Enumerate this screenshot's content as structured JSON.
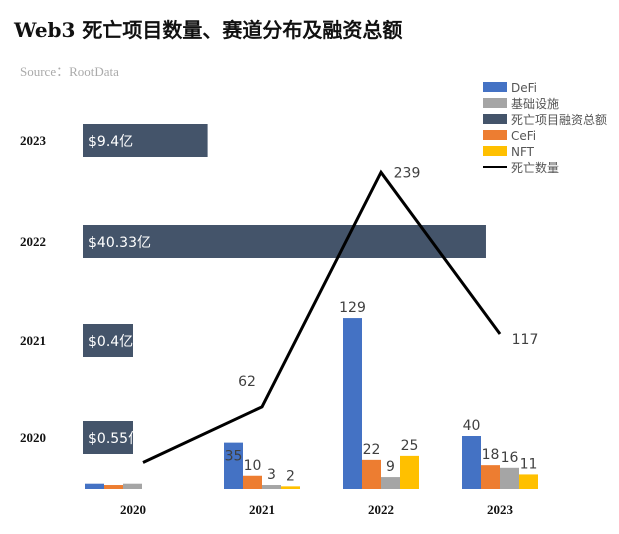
{
  "title": "Web3 死亡项目数量、赛道分布及融资总额",
  "source": "Source：RootData",
  "chart_data": {
    "type": "bar",
    "categories": [
      "2020",
      "2021",
      "2022",
      "2023"
    ],
    "series": [
      {
        "name": "DeFi",
        "color": "#4472C4",
        "values": [
          4,
          35,
          129,
          40
        ],
        "labels": [
          null,
          "35",
          "129",
          "40"
        ]
      },
      {
        "name": "CeFi",
        "color": "#ED7D31",
        "values": [
          3,
          10,
          22,
          18
        ],
        "labels": [
          null,
          "10",
          "22",
          "18"
        ]
      },
      {
        "name": "基础设施",
        "color": "#A5A5A5",
        "values": [
          4,
          3,
          9,
          16
        ],
        "labels": [
          null,
          "3",
          "9",
          "16"
        ]
      },
      {
        "name": "NFT",
        "color": "#FFC000",
        "values": [
          0,
          2,
          25,
          11
        ],
        "labels": [
          null,
          "2",
          "25",
          "11"
        ]
      }
    ],
    "line": {
      "name": "死亡数量",
      "color": "#000000",
      "values": [
        20,
        62,
        239,
        117
      ],
      "labels": [
        null,
        "62",
        "239",
        "117"
      ]
    },
    "funding": {
      "name": "死亡项目融资总额",
      "color": "#44546A",
      "rows": [
        {
          "year": "2023",
          "value": 9.4,
          "label": "$9.4亿"
        },
        {
          "year": "2022",
          "value": 40.33,
          "label": "$40.33亿"
        },
        {
          "year": "2021",
          "value": 0.4,
          "label": "$0.4亿"
        },
        {
          "year": "2020",
          "value": 0.55,
          "label": "$0.55亿"
        }
      ]
    },
    "legend": {
      "position": "top-right",
      "order": [
        "DeFi",
        "基础设施",
        "死亡项目融资总额",
        "CeFi",
        "NFT",
        "死亡数量"
      ]
    }
  }
}
